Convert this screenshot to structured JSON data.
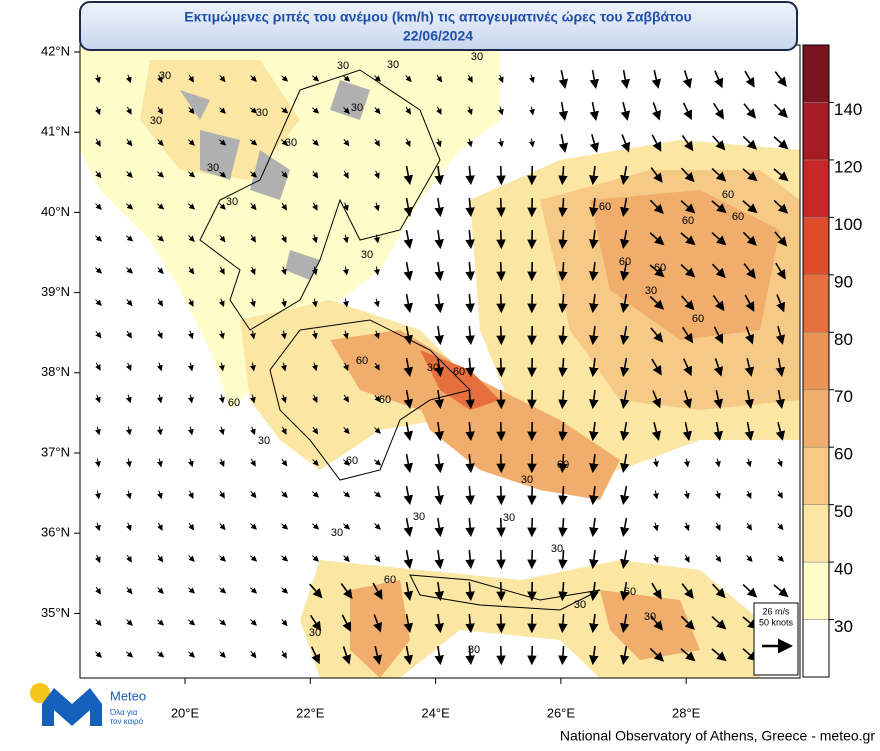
{
  "header": {
    "title": "Εκτιμώμενες ριπές του ανέμου (km/h) τις απογευματινές ώρες του Σαββάτου",
    "date": "22/06/2024"
  },
  "map": {
    "lat_labels": [
      "42°N",
      "41°N",
      "40°N",
      "39°N",
      "38°N",
      "37°N",
      "36°N",
      "35°N"
    ],
    "lon_labels": [
      "20°E",
      "22°E",
      "24°E",
      "26°E",
      "28°E"
    ],
    "contour_labels": [
      "30",
      "30",
      "30",
      "30",
      "30",
      "30",
      "30",
      "30",
      "30",
      "30",
      "30",
      "30",
      "30",
      "60",
      "60",
      "60",
      "60",
      "60",
      "60",
      "60",
      "60",
      "30",
      "60",
      "60",
      "30",
      "60",
      "60",
      "30",
      "30",
      "30",
      "30",
      "60",
      "30",
      "60",
      "30",
      "30",
      "60",
      "30"
    ]
  },
  "colorbar": {
    "ticks": [
      30,
      40,
      50,
      60,
      70,
      80,
      90,
      100,
      120,
      140
    ],
    "colors": [
      "#ffffff",
      "#fefcc8",
      "#fbe6a4",
      "#f6c987",
      "#f0ad6c",
      "#ea9453",
      "#e76f3d",
      "#de4a2c",
      "#c8272a",
      "#a51d22",
      "#7a1320"
    ]
  },
  "legend": {
    "speed": "26 m/s",
    "knots": "50 knots"
  },
  "logo": {
    "name": "Meteo",
    "tagline_1": "Όλα για",
    "tagline_2": "τον καιρό"
  },
  "footer": "National Observatory of Athens, Greece - meteo.gr"
}
